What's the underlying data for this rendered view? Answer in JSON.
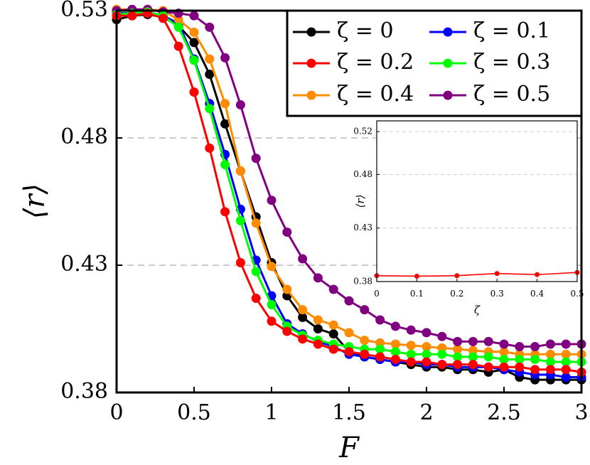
{
  "chart_data": [
    {
      "type": "line",
      "xlabel": "F",
      "ylabel": "⟨r⟩",
      "xlim": [
        0,
        3
      ],
      "ylim": [
        0.38,
        0.53
      ],
      "x_ticks": [
        0,
        0.5,
        1,
        1.5,
        2,
        2.5,
        3
      ],
      "x_tick_labels": [
        "0",
        "0.5",
        "1",
        "1.5",
        "2",
        "2.5",
        "3"
      ],
      "y_ticks": [
        0.38,
        0.43,
        0.48,
        0.53
      ],
      "y_tick_labels": [
        "0.38",
        "0.43",
        "0.48",
        "0.53"
      ],
      "grid": "horizontal dashed",
      "legend_position": "top-right",
      "x": [
        0,
        0.1,
        0.2,
        0.3,
        0.4,
        0.5,
        0.6,
        0.7,
        0.8,
        0.9,
        1.0,
        1.1,
        1.2,
        1.3,
        1.4,
        1.5,
        1.6,
        1.7,
        1.8,
        1.9,
        2.0,
        2.1,
        2.2,
        2.3,
        2.4,
        2.5,
        2.6,
        2.7,
        2.8,
        2.9,
        3.0
      ],
      "series": [
        {
          "name": "ζ = 0",
          "color": "#000000",
          "values": [
            0.5265,
            0.528,
            0.5285,
            0.5275,
            0.524,
            0.5175,
            0.505,
            0.4855,
            0.467,
            0.449,
            0.431,
            0.418,
            0.4095,
            0.405,
            0.403,
            0.396,
            0.394,
            0.393,
            0.392,
            0.391,
            0.39,
            0.39,
            0.389,
            0.389,
            0.388,
            0.389,
            0.386,
            0.385,
            0.385,
            0.385,
            0.385
          ]
        },
        {
          "name": "ζ = 0.1",
          "color": "#0000ff",
          "values": [
            0.529,
            0.529,
            0.5295,
            0.528,
            0.525,
            0.511,
            0.4935,
            0.4735,
            0.452,
            0.432,
            0.418,
            0.407,
            0.403,
            0.4,
            0.398,
            0.395,
            0.394,
            0.393,
            0.392,
            0.392,
            0.391,
            0.391,
            0.39,
            0.39,
            0.39,
            0.389,
            0.388,
            0.387,
            0.387,
            0.386,
            0.386
          ]
        },
        {
          "name": "ζ = 0.2",
          "color": "#ff0000",
          "values": [
            0.528,
            0.528,
            0.529,
            0.527,
            0.516,
            0.498,
            0.476,
            0.451,
            0.431,
            0.417,
            0.408,
            0.404,
            0.401,
            0.399,
            0.397,
            0.396,
            0.395,
            0.394,
            0.393,
            0.392,
            0.392,
            0.391,
            0.391,
            0.391,
            0.39,
            0.39,
            0.39,
            0.389,
            0.389,
            0.389,
            0.388
          ]
        },
        {
          "name": "ζ = 0.3",
          "color": "#00ff00",
          "values": [
            0.5285,
            0.529,
            0.5295,
            0.528,
            0.5235,
            0.5105,
            0.4915,
            0.4695,
            0.4475,
            0.4275,
            0.4145,
            0.406,
            0.4025,
            0.4005,
            0.399,
            0.398,
            0.397,
            0.397,
            0.396,
            0.395,
            0.395,
            0.395,
            0.394,
            0.394,
            0.394,
            0.393,
            0.393,
            0.393,
            0.392,
            0.392,
            0.392
          ]
        },
        {
          "name": "ζ = 0.4",
          "color": "#ff8c00",
          "values": [
            0.5305,
            0.5305,
            0.5305,
            0.53,
            0.5265,
            0.5215,
            0.511,
            0.4935,
            0.467,
            0.4465,
            0.4295,
            0.4205,
            0.4125,
            0.4085,
            0.4065,
            0.4035,
            0.4005,
            0.3995,
            0.399,
            0.3985,
            0.398,
            0.3975,
            0.397,
            0.3965,
            0.396,
            0.396,
            0.395,
            0.395,
            0.395,
            0.395,
            0.395
          ]
        },
        {
          "name": "ζ = 0.5",
          "color": "#800080",
          "values": [
            0.53,
            0.5305,
            0.5305,
            0.5295,
            0.529,
            0.528,
            0.5235,
            0.5115,
            0.493,
            0.472,
            0.4555,
            0.443,
            0.4325,
            0.425,
            0.4205,
            0.416,
            0.4125,
            0.4085,
            0.406,
            0.4045,
            0.4035,
            0.402,
            0.4,
            0.4,
            0.4,
            0.399,
            0.398,
            0.398,
            0.399,
            0.399,
            0.399
          ]
        }
      ]
    },
    {
      "type": "line",
      "xlabel": "ζ",
      "ylabel": "⟨r⟩",
      "xlim": [
        0,
        0.5
      ],
      "ylim": [
        0.38,
        0.53
      ],
      "x_ticks": [
        0,
        0.1,
        0.2,
        0.3,
        0.4,
        0.5
      ],
      "x_tick_labels": [
        "0",
        "0.1",
        "0.2",
        "0.3",
        "0.4",
        "0.5"
      ],
      "y_ticks": [
        0.38,
        0.43,
        0.48,
        0.52
      ],
      "y_tick_labels": [
        "0.38",
        "0.43",
        "0.48",
        "0.52"
      ],
      "grid": "horizontal dashed",
      "x": [
        0,
        0.1,
        0.2,
        0.3,
        0.4,
        0.5
      ],
      "series": [
        {
          "name": "inset",
          "color": "#ff0000",
          "values": [
            0.3855,
            0.385,
            0.3855,
            0.3875,
            0.3865,
            0.3885
          ]
        }
      ]
    }
  ]
}
